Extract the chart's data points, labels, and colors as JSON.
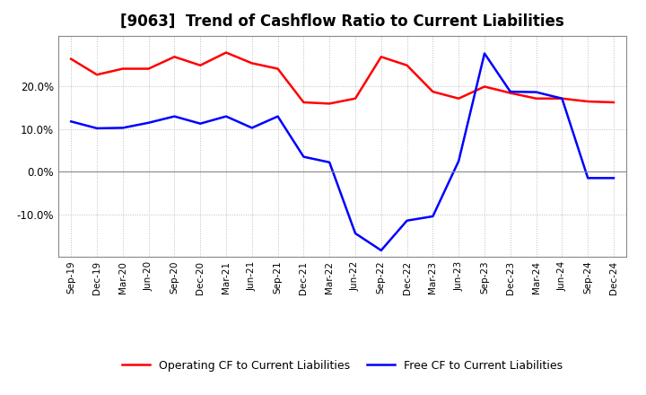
{
  "title": "[9063]  Trend of Cashflow Ratio to Current Liabilities",
  "x_labels": [
    "Sep-19",
    "Dec-19",
    "Mar-20",
    "Jun-20",
    "Sep-20",
    "Dec-20",
    "Mar-21",
    "Jun-21",
    "Sep-21",
    "Dec-21",
    "Mar-22",
    "Jun-22",
    "Sep-22",
    "Dec-22",
    "Mar-23",
    "Jun-23",
    "Sep-23",
    "Dec-23",
    "Mar-24",
    "Jun-24",
    "Sep-24",
    "Dec-24"
  ],
  "operating_cf": [
    0.265,
    0.228,
    0.242,
    0.242,
    0.27,
    0.25,
    0.28,
    0.255,
    0.242,
    0.163,
    0.16,
    0.172,
    0.27,
    0.25,
    0.188,
    0.172,
    0.2,
    0.185,
    0.172,
    0.172,
    0.165,
    0.163
  ],
  "free_cf": [
    0.118,
    0.102,
    0.103,
    0.115,
    0.13,
    0.113,
    0.13,
    0.103,
    0.13,
    0.035,
    0.022,
    -0.145,
    -0.185,
    -0.115,
    -0.105,
    0.025,
    0.278,
    0.188,
    0.187,
    0.172,
    -0.015,
    -0.015
  ],
  "operating_color": "#ff0000",
  "free_color": "#0000ff",
  "ylim": [
    -0.2,
    0.32
  ],
  "yticks": [
    -0.1,
    0.0,
    0.1,
    0.2
  ],
  "background_color": "#ffffff",
  "grid_color": "#bbbbbb",
  "title_fontsize": 12,
  "legend_fontsize": 9
}
